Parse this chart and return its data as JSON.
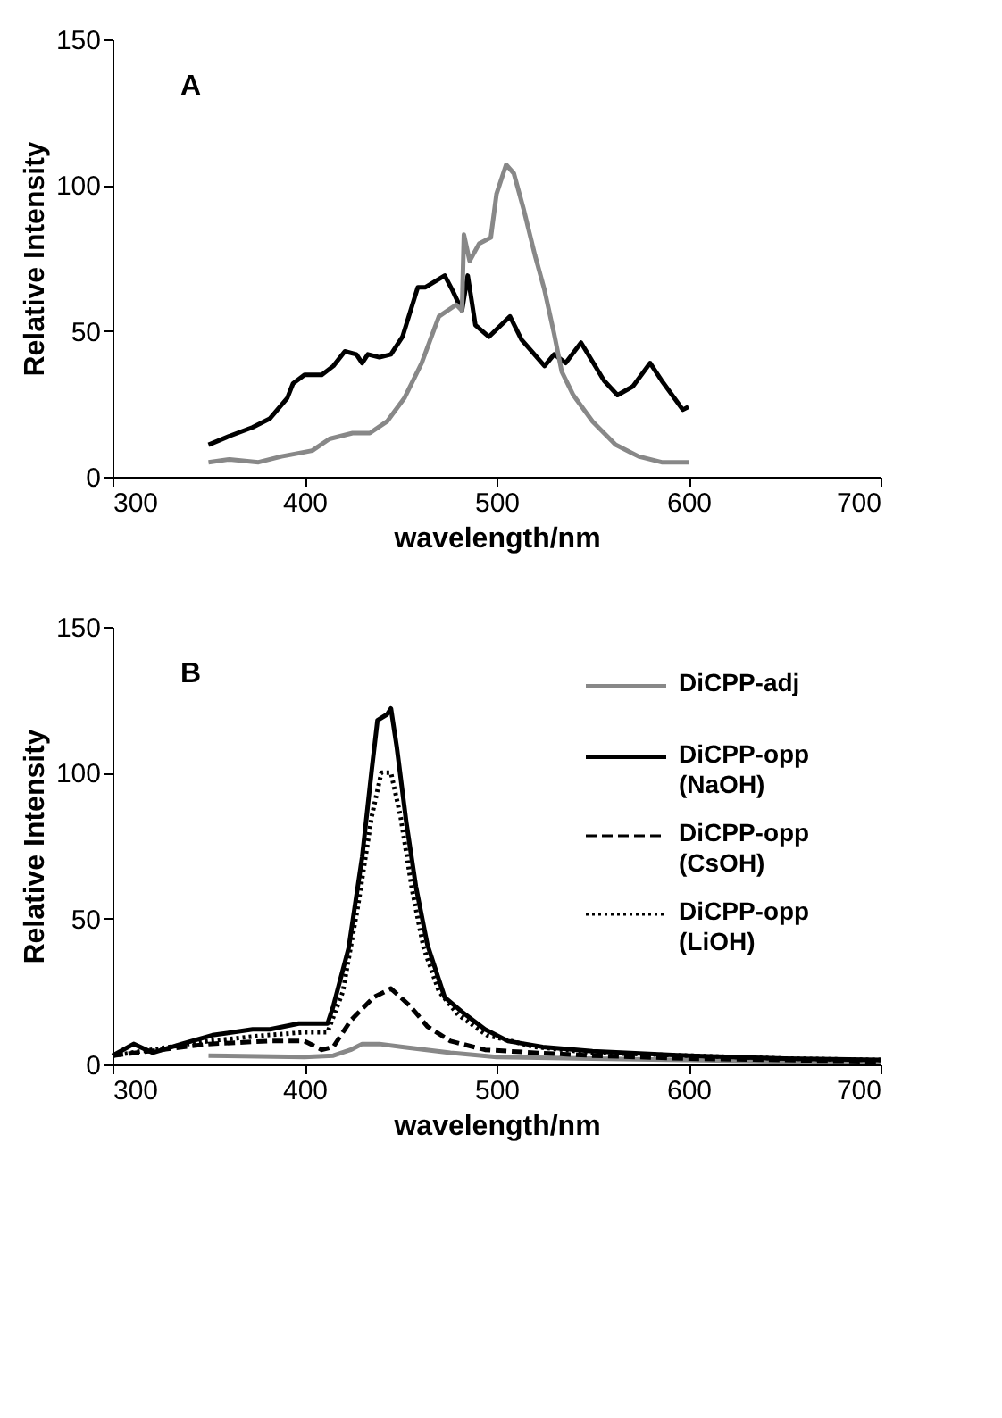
{
  "chart_data": [
    {
      "type": "line",
      "xlabel": "wavelength/nm",
      "ylabel": "Relative Intensity",
      "annotations": [
        "A"
      ],
      "xlim": [
        300,
        700
      ],
      "xticks": [
        300,
        400,
        500,
        600,
        700
      ],
      "ylim": [
        0,
        150
      ],
      "yticks": [
        0,
        50,
        100,
        150
      ],
      "grid": false,
      "series": [
        {
          "color": "#000000",
          "line_style": "solid",
          "x": [
            350,
            361,
            373,
            382,
            391,
            394,
            400,
            409,
            415,
            421,
            427,
            430,
            433,
            439,
            445,
            451,
            459,
            463,
            473,
            477,
            482,
            485,
            489,
            496,
            507,
            513,
            525,
            530,
            536,
            544,
            556,
            563,
            571,
            580,
            586,
            597,
            600
          ],
          "values": [
            11,
            14,
            17,
            20,
            27,
            32,
            35,
            35,
            38,
            43,
            42,
            39,
            42,
            41,
            42,
            48,
            65,
            65,
            69,
            64,
            57,
            69,
            52,
            48,
            55,
            47,
            38,
            42,
            39,
            46,
            33,
            28,
            31,
            39,
            33,
            23,
            24
          ]
        },
        {
          "color": "#888888",
          "line_style": "solid",
          "x": [
            350,
            361,
            376,
            388,
            404,
            413,
            425,
            434,
            443,
            452,
            461,
            470,
            479,
            482,
            483,
            486,
            491,
            497,
            500,
            505,
            509,
            514,
            520,
            525,
            530,
            534,
            540,
            550,
            562,
            574,
            586,
            600
          ],
          "values": [
            5,
            6,
            5,
            7,
            9,
            13,
            15,
            15,
            19,
            27,
            39,
            55,
            59,
            57,
            83,
            74,
            80,
            82,
            97,
            107,
            104,
            92,
            76,
            64,
            49,
            36,
            28,
            19,
            11,
            7,
            5,
            5
          ]
        }
      ]
    },
    {
      "type": "line",
      "xlabel": "wavelength/nm",
      "ylabel": "Relative Intensity",
      "annotations": [
        "B"
      ],
      "xlim": [
        300,
        700
      ],
      "xticks": [
        300,
        400,
        500,
        600,
        700
      ],
      "ylim": [
        0,
        150
      ],
      "yticks": [
        0,
        50,
        100,
        150
      ],
      "grid": false,
      "legend": "top right",
      "series": [
        {
          "name": "DiCPP-adj",
          "color": "#888888",
          "line_style": "solid",
          "x": [
            350,
            400,
            415,
            424,
            430,
            439,
            451,
            476,
            500,
            550,
            600,
            650,
            700
          ],
          "values": [
            3,
            2.5,
            3,
            5,
            7,
            7,
            6,
            4,
            2.5,
            2,
            1.5,
            1,
            1
          ]
        },
        {
          "name": "DiCPP-opp (NaOH)",
          "color": "#000000",
          "line_style": "solid",
          "x": [
            300,
            311,
            321,
            336,
            352,
            373,
            382,
            397,
            412,
            415,
            423,
            430,
            435,
            438,
            443,
            445,
            448,
            453,
            458,
            464,
            473,
            482,
            494,
            506,
            524,
            550,
            600,
            650,
            700
          ],
          "values": [
            3,
            7,
            4,
            7,
            10,
            12,
            12,
            14,
            14,
            20,
            40,
            71,
            101,
            118,
            120,
            122,
            109,
            83,
            61,
            41,
            23,
            18,
            12,
            8,
            6,
            4.5,
            3,
            2,
            1.5
          ]
        },
        {
          "name": "DiCPP-opp (CsOH)",
          "color": "#000000",
          "line_style": "dashed",
          "x": [
            300,
            350,
            382,
            400,
            409,
            415,
            424,
            436,
            445,
            455,
            464,
            476,
            494,
            520,
            550,
            600,
            650,
            700
          ],
          "values": [
            3,
            7,
            8,
            8,
            5,
            6,
            15,
            23,
            26,
            20,
            13,
            8,
            5,
            4,
            3,
            2,
            1.5,
            1
          ]
        },
        {
          "name": "DiCPP-opp (LiOH)",
          "color": "#000000",
          "line_style": "dotted",
          "x": [
            300,
            320,
            350,
            380,
            400,
            412,
            420,
            428,
            435,
            440,
            445,
            450,
            456,
            462,
            470,
            480,
            495,
            520,
            550,
            600,
            650,
            700
          ],
          "values": [
            3,
            5,
            8,
            10,
            11,
            11,
            25,
            55,
            85,
            100,
            100,
            85,
            60,
            40,
            25,
            17,
            10,
            6,
            4,
            3,
            2,
            1.5
          ]
        }
      ]
    }
  ]
}
